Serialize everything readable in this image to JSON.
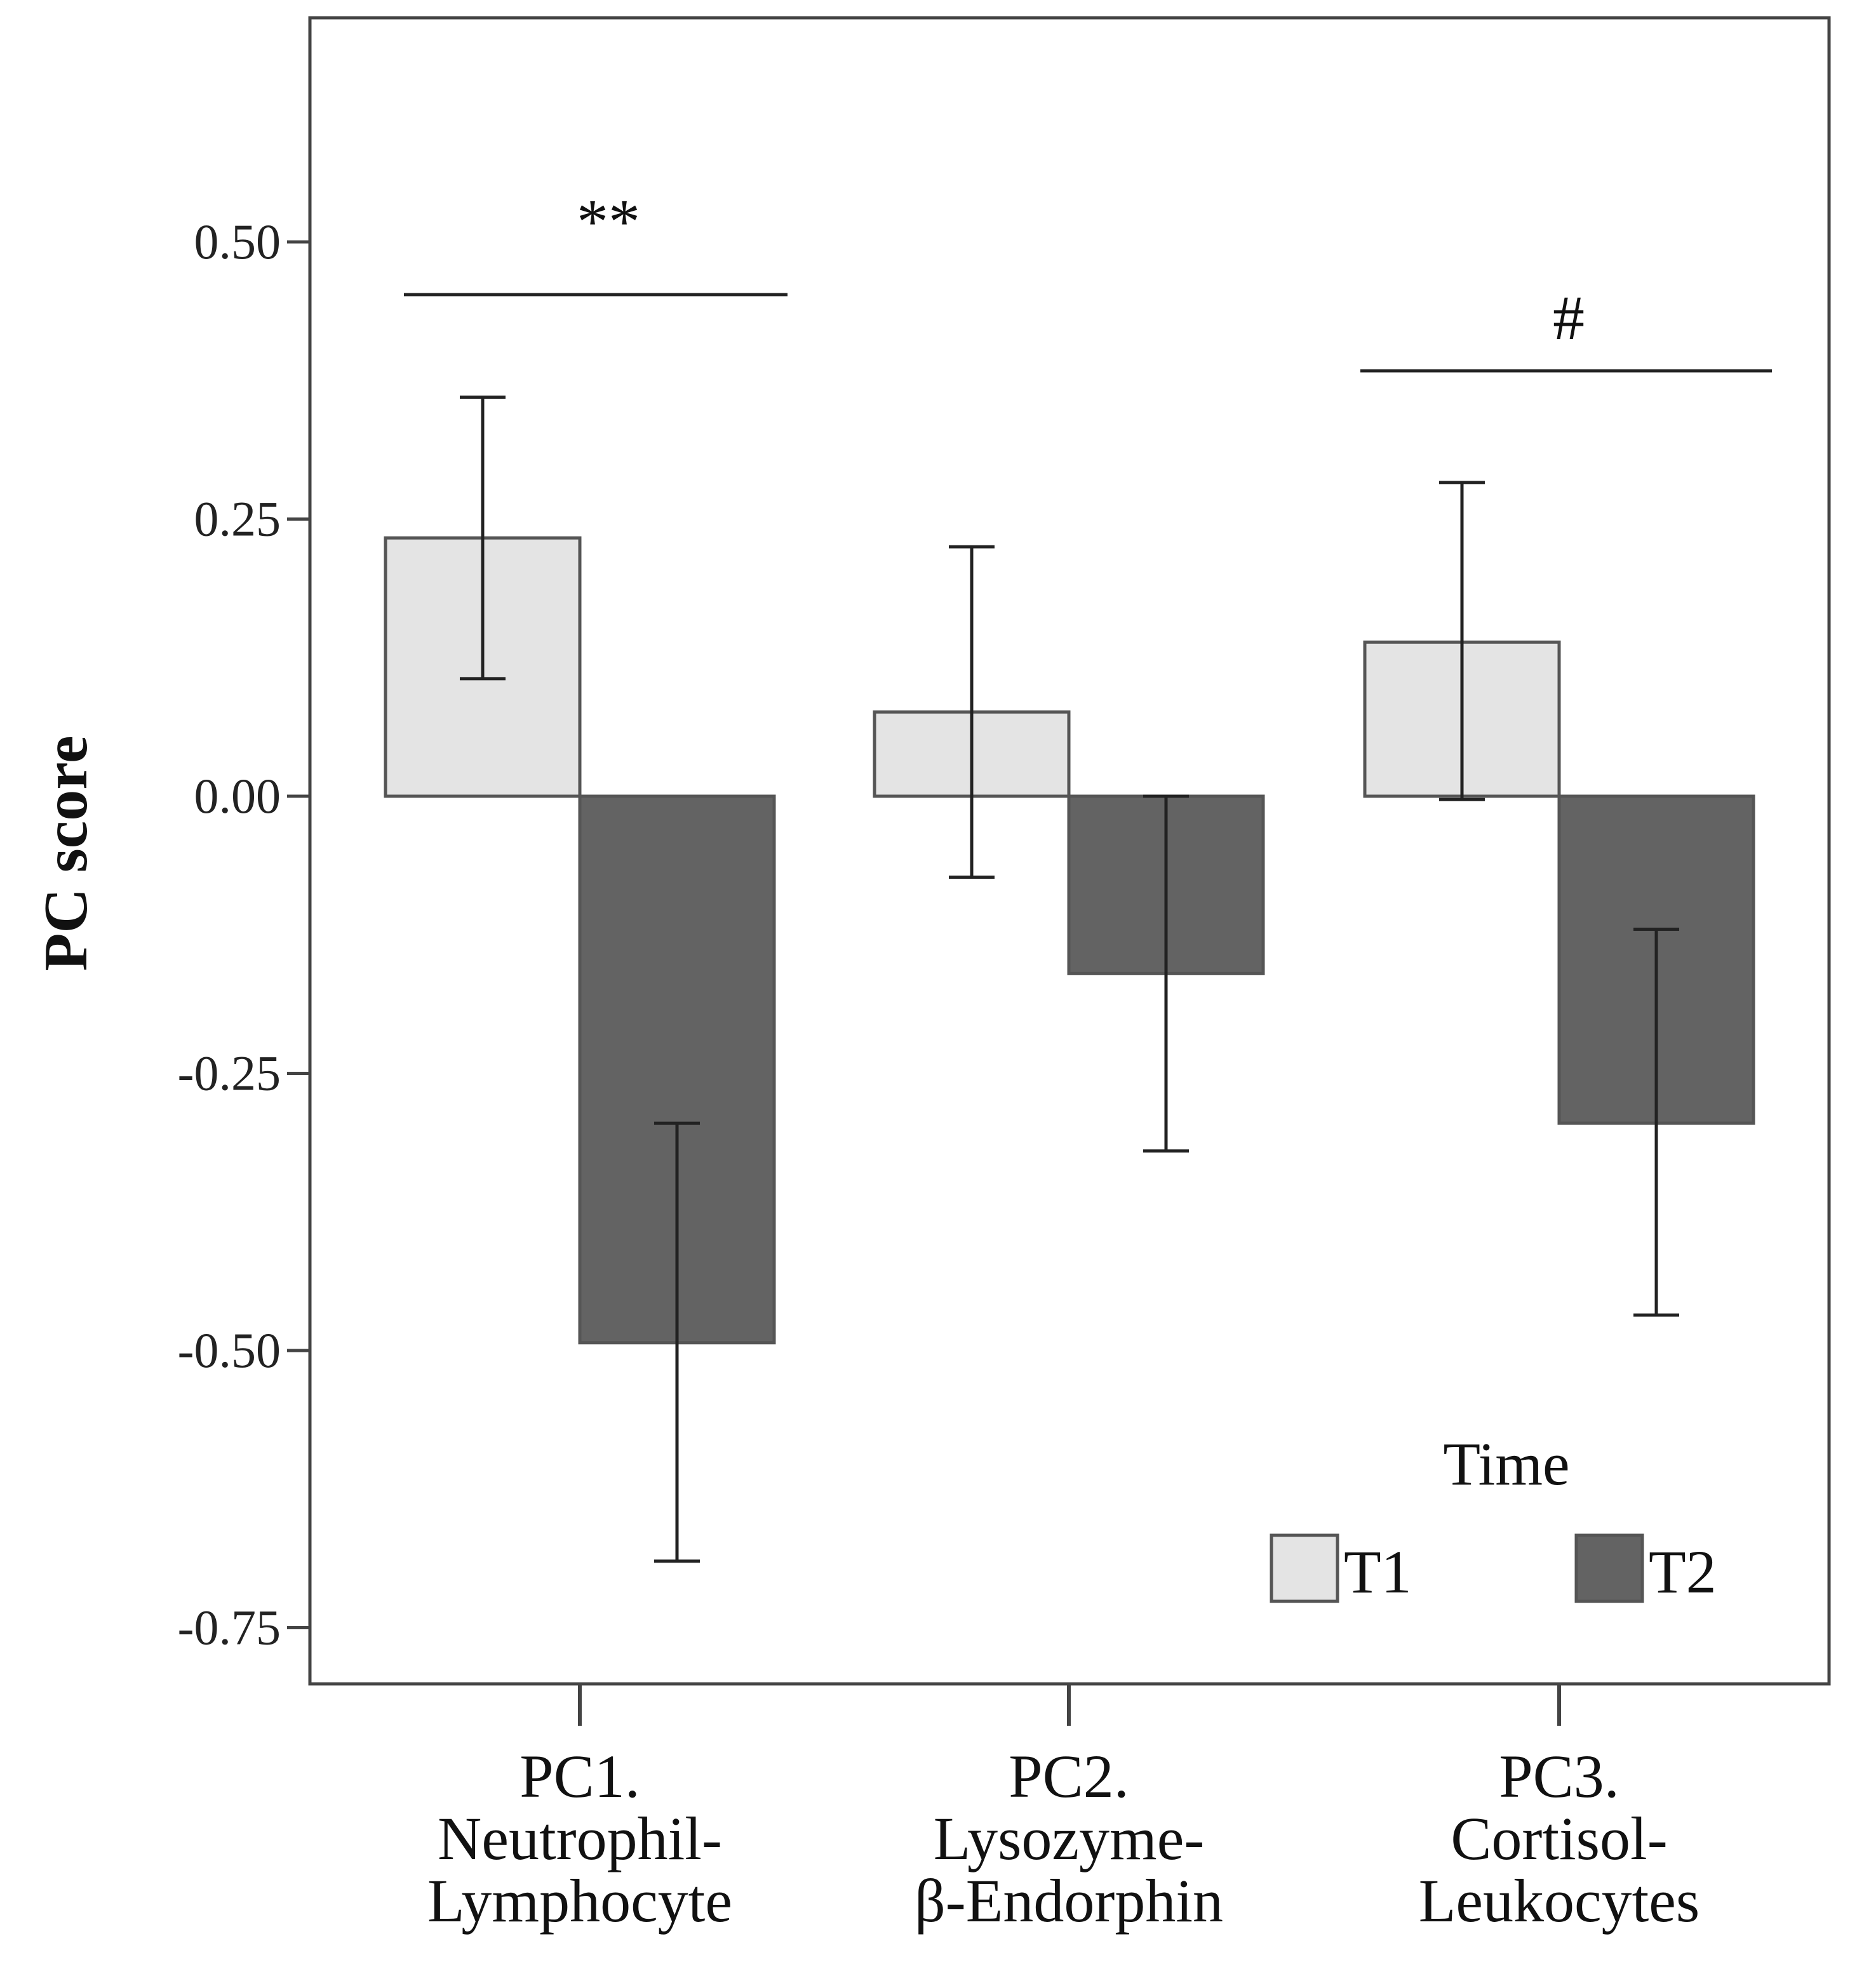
{
  "chart_data": {
    "type": "bar",
    "ylabel": "PC score",
    "xlabel": "",
    "ylim": [
      -0.8,
      0.72
    ],
    "yticks": [
      0.5,
      0.25,
      0.0,
      -0.25,
      -0.5,
      -0.75
    ],
    "ytick_labels": [
      "0.50",
      "0.25",
      "0.00",
      "-0.25",
      "-0.50",
      "-0.75"
    ],
    "categories": [
      [
        "PC1.",
        "Neutrophil-",
        "Lymphocyte"
      ],
      [
        "PC2.",
        "Lysozyme-",
        "β-Endorphin"
      ],
      [
        "PC3.",
        "Cortisol-",
        "Leukocytes"
      ]
    ],
    "series": [
      {
        "name": "T1",
        "color": "#e4e4e4",
        "values": [
          0.233,
          0.076,
          0.139
        ],
        "err_low": [
          0.106,
          -0.073,
          -0.003
        ],
        "err_high": [
          0.36,
          0.225,
          0.283
        ]
      },
      {
        "name": "T2",
        "color": "#636363",
        "values": [
          -0.493,
          -0.16,
          -0.295
        ],
        "err_low": [
          -0.69,
          -0.32,
          -0.468
        ],
        "err_high": [
          -0.295,
          0.0,
          -0.12
        ]
      }
    ],
    "legend": {
      "title": "Time",
      "position": "bottom-right"
    },
    "grid": false,
    "annotations": [
      {
        "text": "**",
        "between": "PC1"
      },
      {
        "text": "#",
        "between": "PC3"
      }
    ]
  }
}
